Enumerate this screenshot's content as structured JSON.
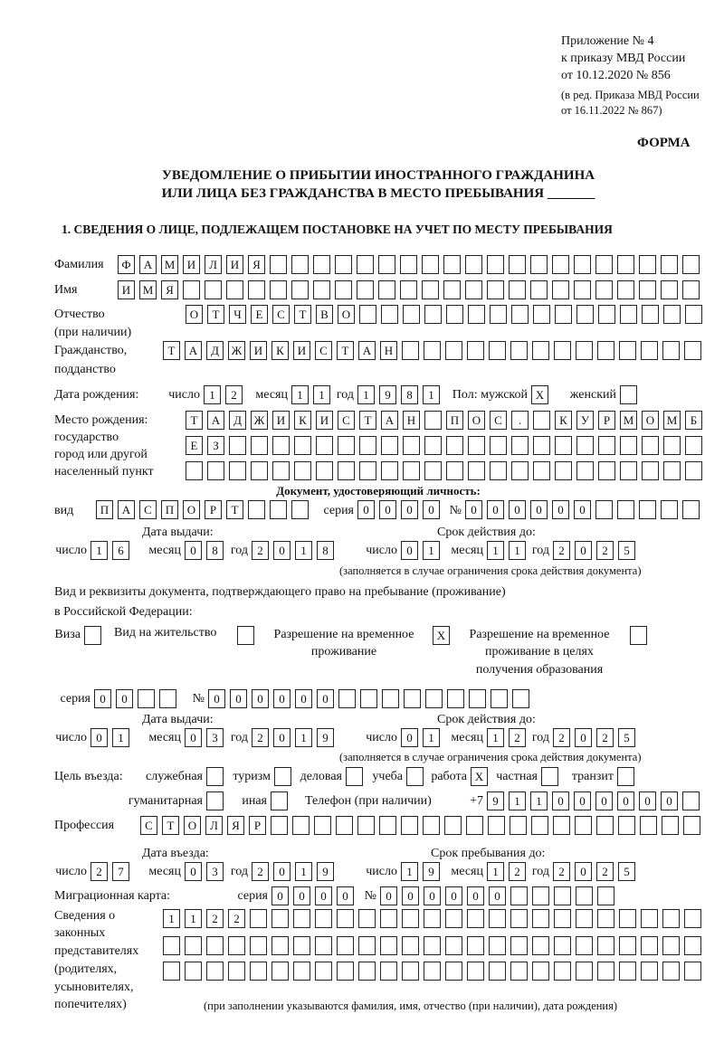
{
  "header": {
    "line1": "Приложение № 4",
    "line2": "к приказу МВД России",
    "line3": "от 10.12.2020 № 856",
    "line4": "(в ред. Приказа МВД России",
    "line5": "от 16.11.2022 № 867)",
    "form_label": "ФОРМА"
  },
  "title": {
    "line1": "УВЕДОМЛЕНИЕ О ПРИБЫТИИ ИНОСТРАННОГО ГРАЖДАНИНА",
    "line2": "ИЛИ ЛИЦА БЕЗ ГРАЖДАНСТВА В МЕСТО ПРЕБЫВАНИЯ _______"
  },
  "section1": {
    "heading": "1. СВЕДЕНИЯ О ЛИЦЕ, ПОДЛЕЖАЩЕМ ПОСТАНОВКЕ НА УЧЕТ ПО МЕСТУ ПРЕБЫВАНИЯ",
    "surname": {
      "label": "Фамилия",
      "value": "ФАМИЛИЯ"
    },
    "name": {
      "label": "Имя",
      "value": "ИМЯ"
    },
    "patronymic": {
      "label1": "Отчество",
      "label2": "(при наличии)",
      "value": "ОТЧЕСТВО"
    },
    "citizenship": {
      "label1": "Гражданство,",
      "label2": "подданство",
      "value": "ТАДЖИКИСТАН"
    },
    "birth_date": {
      "label": "Дата рождения:",
      "day_label": "число",
      "month_label": "месяц",
      "year_label": "год",
      "day": "12",
      "month": "11",
      "year": "1981"
    },
    "sex": {
      "label": "Пол: мужской",
      "female_label": "женский",
      "male": true,
      "female": false
    },
    "birth_place": {
      "label1": "Место рождения:",
      "label2": "государство",
      "label3": "город или другой",
      "label4": "населенный пункт",
      "row1": "ТАДЖИКИСТАН ПОС. КУРМОМБ",
      "row2": "ЕЗ",
      "row3": ""
    },
    "id_document": {
      "heading": "Документ, удостоверяющий личность:",
      "kind_label": "вид",
      "kind": "ПАСПОРТ",
      "series_label": "серия",
      "series": "0000",
      "number_label": "№",
      "number": "000000",
      "issue_label": "Дата выдачи:",
      "valid_label": "Срок действия до:",
      "day_label": "число",
      "month_label": "месяц",
      "year_label": "год",
      "issue_day": "16",
      "issue_month": "08",
      "issue_year": "2018",
      "valid_day": "01",
      "valid_month": "11",
      "valid_year": "2025",
      "note": "(заполняется в случае ограничения срока действия документа)"
    },
    "residence_document": {
      "label1": "Вид и реквизиты документа, подтверждающего право на пребывание (проживание)",
      "label2": "в Российской Федерации:",
      "options": [
        {
          "label": "Виза",
          "checked": false
        },
        {
          "label": "Вид на жительство",
          "checked": false
        },
        {
          "label": "Разрешение на временное проживание",
          "line1": "Разрешение на временное",
          "line2": "проживание",
          "checked": true
        },
        {
          "label": "Разрешение на временное проживание в целях получения образования",
          "line1": "Разрешение на временное",
          "line2": "проживание в целях",
          "line3": "получения образования",
          "checked": false
        }
      ],
      "series_label": "серия",
      "series": "00",
      "number_label": "№",
      "number": "000000",
      "issue_label": "Дата выдачи:",
      "valid_label": "Срок действия до:",
      "day_label": "число",
      "month_label": "месяц",
      "year_label": "год",
      "issue_day": "01",
      "issue_month": "03",
      "issue_year": "2019",
      "valid_day": "01",
      "valid_month": "12",
      "valid_year": "2025",
      "note": "(заполняется в случае ограничения срока действия документа)"
    },
    "purpose": {
      "label": "Цель въезда:",
      "options": [
        {
          "label": "служебная",
          "checked": false
        },
        {
          "label": "туризм",
          "checked": false
        },
        {
          "label": "деловая",
          "checked": false
        },
        {
          "label": "учеба",
          "checked": false
        },
        {
          "label": "работа",
          "checked": true
        },
        {
          "label": "частная",
          "checked": false
        },
        {
          "label": "транзит",
          "checked": false
        },
        {
          "label": "гуманитарная",
          "checked": false
        },
        {
          "label": "иная",
          "checked": false
        }
      ]
    },
    "phone": {
      "label": "Телефон (при наличии)",
      "prefix": "+7",
      "value": "911000000"
    },
    "profession": {
      "label": "Профессия",
      "value": "СТОЛЯР"
    },
    "entry": {
      "entry_label": "Дата въезда:",
      "stay_label": "Срок пребывания до:",
      "day_label": "число",
      "month_label": "месяц",
      "year_label": "год",
      "entry_day": "27",
      "entry_month": "03",
      "entry_year": "2019",
      "stay_day": "19",
      "stay_month": "12",
      "stay_year": "2025"
    },
    "migration_card": {
      "label": "Миграционная карта:",
      "series_label": "серия",
      "series": "0000",
      "number_label": "№",
      "number": "000000"
    },
    "representatives": {
      "label1": "Сведения о",
      "label2": "законных",
      "label3": "представителях",
      "label4": "(родителях,",
      "label5": "усыновителях,",
      "label6": "попечителях)",
      "row1": "1122",
      "row2": "",
      "row3": "",
      "note": "(при заполнении указываются фамилия, имя, отчество (при наличии), дата рождения)"
    }
  }
}
